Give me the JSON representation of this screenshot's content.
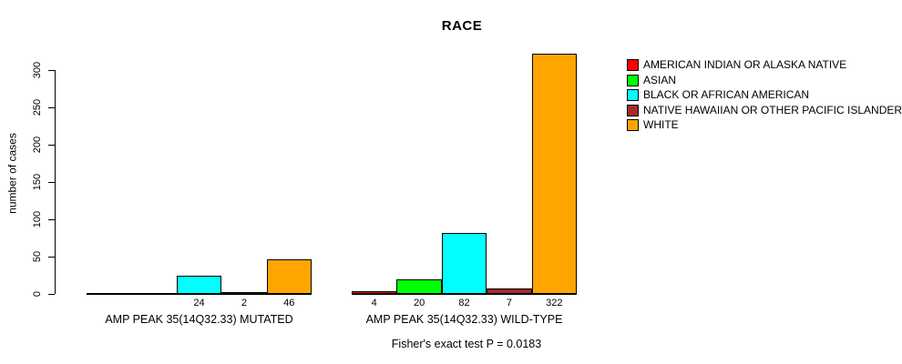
{
  "title": "RACE",
  "y_axis": {
    "label": "number of cases",
    "ticks": [
      0,
      50,
      100,
      150,
      200,
      250,
      300
    ]
  },
  "legend": {
    "items": [
      {
        "label": "AMERICAN INDIAN OR ALASKA NATIVE",
        "color": "#FF0000"
      },
      {
        "label": "ASIAN",
        "color": "#00FF00"
      },
      {
        "label": "BLACK OR AFRICAN AMERICAN",
        "color": "#00FFFF"
      },
      {
        "label": "NATIVE HAWAIIAN OR OTHER PACIFIC ISLANDER",
        "color": "#A52A2A"
      },
      {
        "label": "WHITE",
        "color": "#FFA500"
      }
    ]
  },
  "annotation": "Fisher's exact test P = 0.0183",
  "chart_data": {
    "type": "bar",
    "title": "RACE",
    "ylabel": "number of cases",
    "ylim": [
      0,
      300
    ],
    "yticks": [
      0,
      50,
      100,
      150,
      200,
      250,
      300
    ],
    "grid": false,
    "legend_position": "top-right",
    "categories": [
      "AMERICAN INDIAN OR ALASKA NATIVE",
      "ASIAN",
      "BLACK OR AFRICAN AMERICAN",
      "NATIVE HAWAIIAN OR OTHER PACIFIC ISLANDER",
      "WHITE"
    ],
    "colors": [
      "#FF0000",
      "#00FF00",
      "#00FFFF",
      "#A52A2A",
      "#FFA500"
    ],
    "groups": [
      {
        "label": "AMP PEAK 35(14Q32.33) MUTATED",
        "values": [
          0,
          0,
          24,
          2,
          46
        ],
        "value_labels": [
          "",
          "",
          "24",
          "2",
          "46"
        ]
      },
      {
        "label": "AMP PEAK 35(14Q32.33) WILD-TYPE",
        "values": [
          4,
          20,
          82,
          7,
          322
        ],
        "value_labels": [
          "4",
          "20",
          "82",
          "7",
          "322"
        ]
      }
    ],
    "annotation": "Fisher's exact test P = 0.0183"
  }
}
